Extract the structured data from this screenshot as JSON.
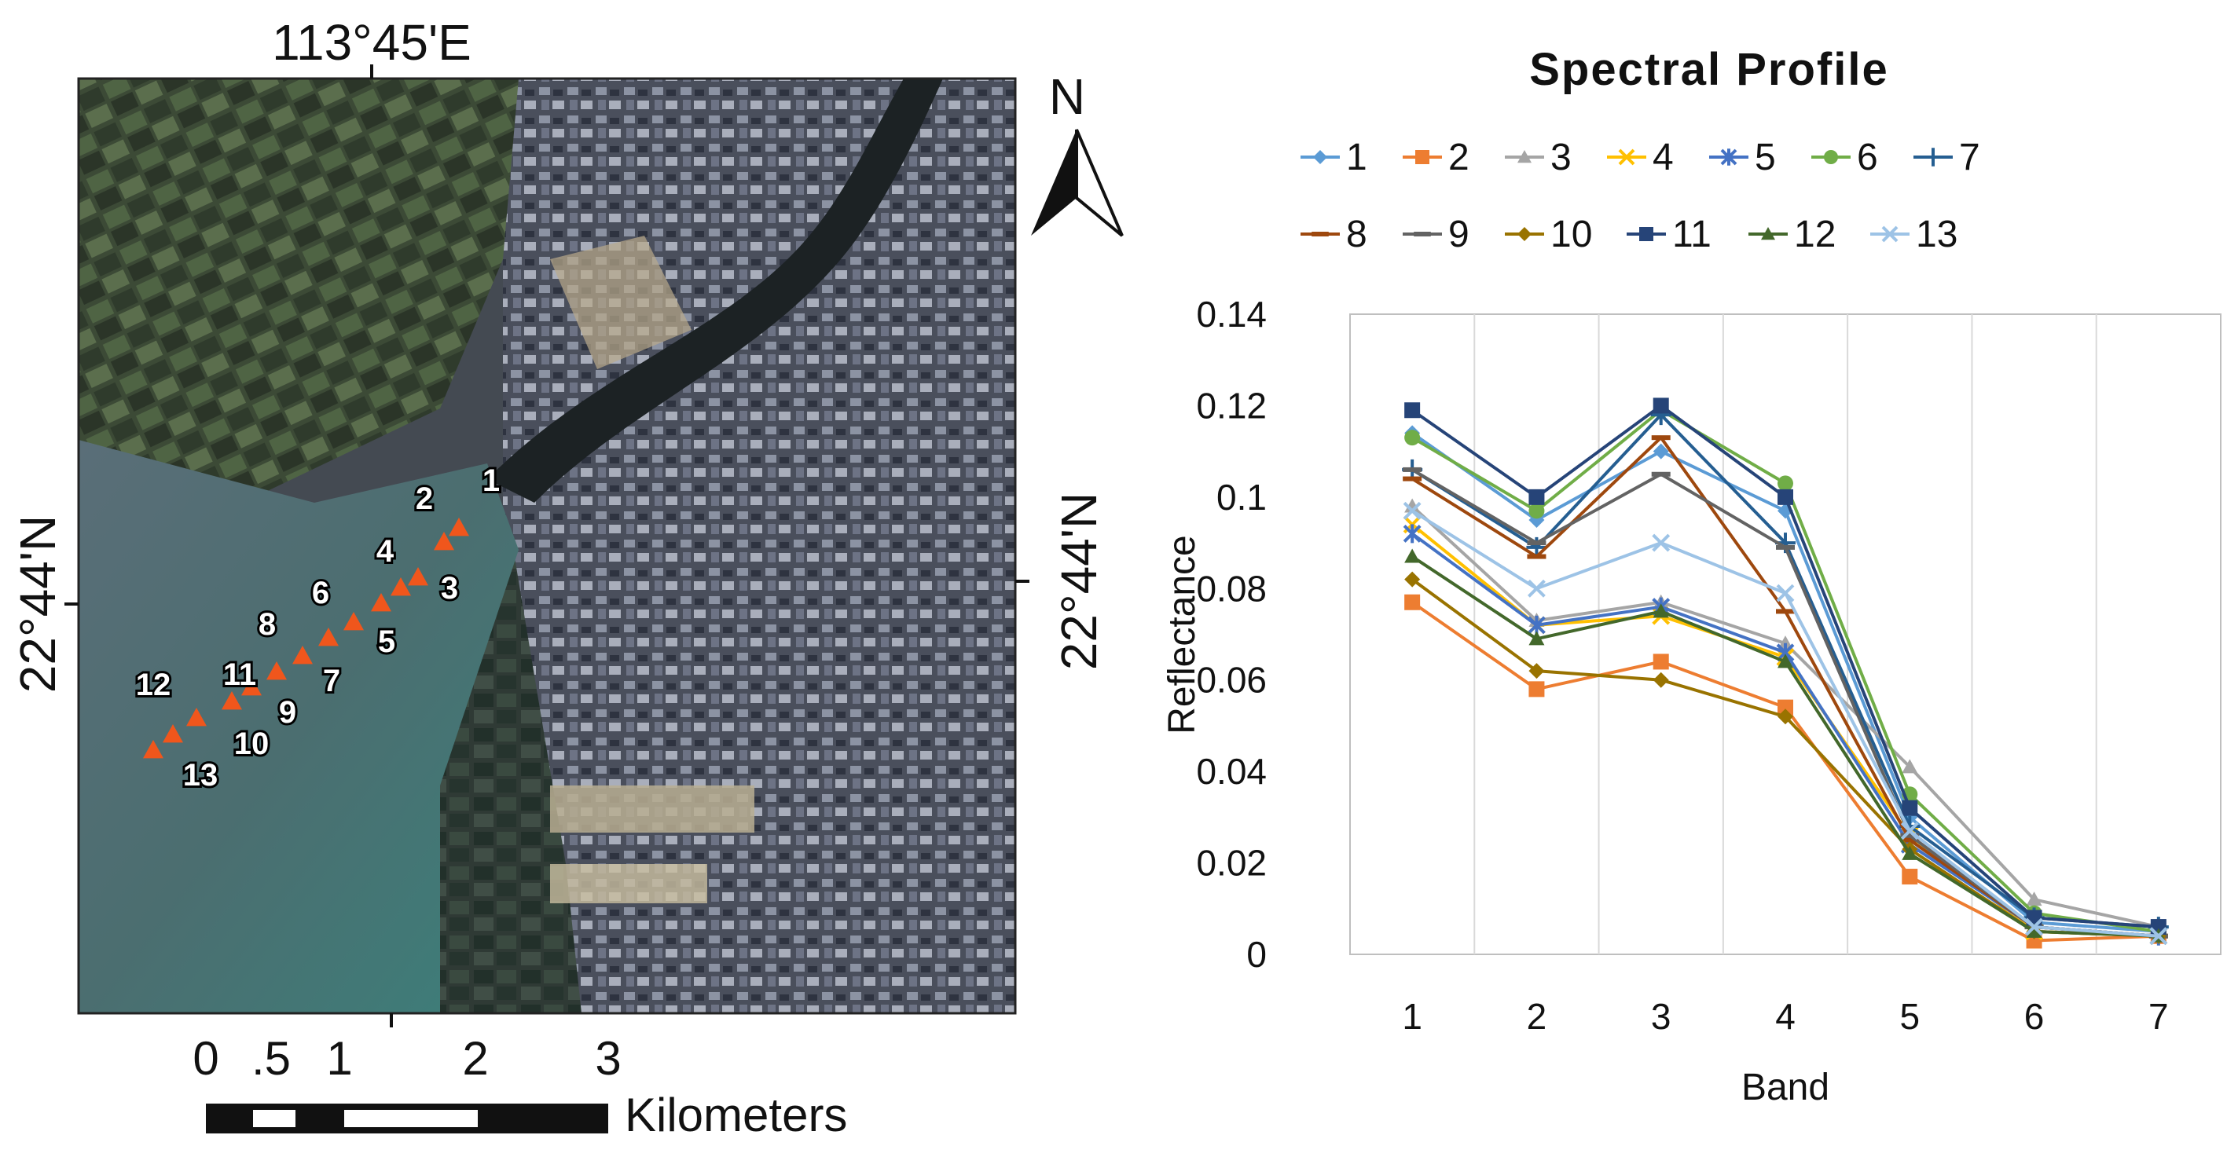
{
  "map": {
    "lon_label": "113°45'E",
    "lat_label_left": "22°44'N",
    "lat_label_right": "22°44'N",
    "north_label": "N",
    "scale_labels": [
      "0",
      ".5",
      "1",
      "2",
      "3"
    ],
    "scale_unit": "Kilometers",
    "points": [
      "1",
      "2",
      "3",
      "4",
      "5",
      "6",
      "7",
      "8",
      "9",
      "10",
      "11",
      "12",
      "13"
    ],
    "marker_color": "#f0561c"
  },
  "chart_data": {
    "type": "line",
    "title": "Spectral Profile",
    "xlabel": "Band",
    "ylabel": "Reflectance",
    "categories": [
      "1",
      "2",
      "3",
      "4",
      "5",
      "6",
      "7"
    ],
    "ylim": [
      0,
      0.14
    ],
    "yticks": [
      "0",
      "0.02",
      "0.04",
      "0.06",
      "0.08",
      "0.1",
      "0.12",
      "0.14"
    ],
    "legend_position": "top",
    "grid": "vertical",
    "series": [
      {
        "name": "1",
        "color": "#5b9bd5",
        "marker": "diamond",
        "values": [
          0.114,
          0.095,
          0.11,
          0.097,
          0.03,
          0.007,
          0.005
        ]
      },
      {
        "name": "2",
        "color": "#ed7d31",
        "marker": "square",
        "values": [
          0.077,
          0.058,
          0.064,
          0.054,
          0.017,
          0.003,
          0.004
        ]
      },
      {
        "name": "3",
        "color": "#a5a5a5",
        "marker": "triangle",
        "values": [
          0.098,
          0.073,
          0.077,
          0.068,
          0.041,
          0.012,
          0.006
        ]
      },
      {
        "name": "4",
        "color": "#ffc000",
        "marker": "x",
        "values": [
          0.094,
          0.072,
          0.074,
          0.065,
          0.026,
          0.005,
          0.004
        ]
      },
      {
        "name": "5",
        "color": "#4472c4",
        "marker": "star",
        "values": [
          0.092,
          0.072,
          0.076,
          0.066,
          0.024,
          0.006,
          0.004
        ]
      },
      {
        "name": "6",
        "color": "#70ad47",
        "marker": "circle",
        "values": [
          0.113,
          0.097,
          0.119,
          0.103,
          0.035,
          0.009,
          0.005
        ]
      },
      {
        "name": "7",
        "color": "#255e91",
        "marker": "plus",
        "values": [
          0.106,
          0.089,
          0.118,
          0.09,
          0.028,
          0.008,
          0.006
        ]
      },
      {
        "name": "8",
        "color": "#9e480e",
        "marker": "dash",
        "values": [
          0.104,
          0.087,
          0.113,
          0.075,
          0.025,
          0.006,
          0.004
        ]
      },
      {
        "name": "9",
        "color": "#636363",
        "marker": "dash",
        "values": [
          0.106,
          0.09,
          0.105,
          0.089,
          0.026,
          0.006,
          0.004
        ]
      },
      {
        "name": "10",
        "color": "#997300",
        "marker": "diamond",
        "values": [
          0.082,
          0.062,
          0.06,
          0.052,
          0.023,
          0.005,
          0.004
        ]
      },
      {
        "name": "11",
        "color": "#264478",
        "marker": "square",
        "values": [
          0.119,
          0.1,
          0.12,
          0.1,
          0.032,
          0.008,
          0.006
        ]
      },
      {
        "name": "12",
        "color": "#43682b",
        "marker": "triangle",
        "values": [
          0.087,
          0.069,
          0.075,
          0.064,
          0.022,
          0.005,
          0.004
        ]
      },
      {
        "name": "13",
        "color": "#9dc3e6",
        "marker": "x",
        "values": [
          0.097,
          0.08,
          0.09,
          0.079,
          0.027,
          0.006,
          0.004
        ]
      }
    ]
  }
}
